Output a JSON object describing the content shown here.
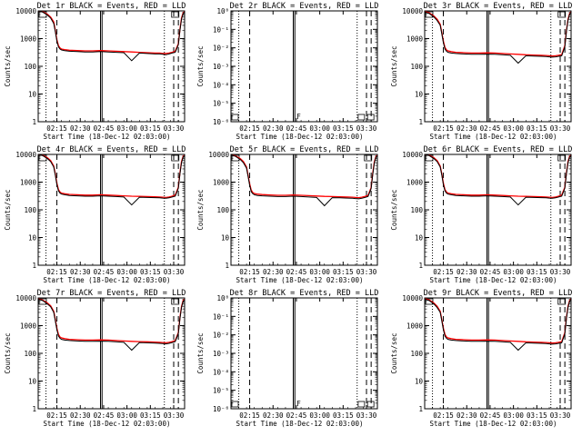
{
  "figure": {
    "time_ticks": [
      "02:15",
      "02:30",
      "02:45",
      "03:00",
      "03:15",
      "03:30"
    ],
    "xlabel": "Start Time (18-Dec-12 02:03:00)",
    "ylabel": "Counts/sec",
    "marker_box_label": "F"
  },
  "chart_data": [
    {
      "type": "line",
      "title": "Det 1r BLACK = Events, RED = LLD",
      "yscale": "log",
      "ylim": [
        1,
        10000
      ],
      "yticks": [
        "1",
        "10",
        "100",
        "1000",
        "10000"
      ],
      "has_data": true,
      "x_minutes": [
        0,
        3,
        6,
        8,
        10,
        11,
        12,
        13,
        14,
        15,
        17,
        20,
        25,
        30,
        35,
        40,
        45,
        50,
        55,
        60,
        65,
        70,
        75,
        78,
        80,
        82,
        84,
        86,
        88,
        90,
        91,
        92,
        93,
        94
      ],
      "series": [
        {
          "name": "Events",
          "color": "#000000",
          "values": [
            10000,
            9000,
            7000,
            5500,
            3500,
            1800,
            800,
            500,
            420,
            390,
            370,
            350,
            340,
            330,
            330,
            340,
            330,
            320,
            310,
            160,
            300,
            290,
            280,
            280,
            270,
            260,
            280,
            300,
            320,
            600,
            2000,
            5000,
            8000,
            9000
          ]
        },
        {
          "name": "LLD",
          "color": "#ff0000",
          "values": [
            10000,
            9300,
            7500,
            6000,
            4000,
            2000,
            900,
            560,
            460,
            420,
            400,
            380,
            370,
            360,
            360,
            370,
            360,
            350,
            340,
            330,
            320,
            310,
            300,
            300,
            290,
            290,
            300,
            320,
            350,
            650,
            2200,
            5500,
            8500,
            9500
          ]
        }
      ]
    },
    {
      "type": "line",
      "title": "Det 2r BLACK = Events, RED = LLD",
      "yscale": "log",
      "ylim": [
        1e-06,
        1
      ],
      "yticks": [
        "10⁰",
        "10⁻¹",
        "10⁻²",
        "10⁻³",
        "10⁻⁴",
        "10⁻⁵",
        "10⁻⁶"
      ],
      "has_data": false
    },
    {
      "type": "line",
      "title": "Det 3r BLACK = Events, RED = LLD",
      "yscale": "log",
      "ylim": [
        1,
        10000
      ],
      "yticks": [
        "1",
        "10",
        "100",
        "1000",
        "10000"
      ],
      "has_data": true,
      "x_minutes": [
        0,
        3,
        6,
        8,
        10,
        11,
        12,
        13,
        14,
        15,
        17,
        20,
        25,
        30,
        35,
        40,
        45,
        50,
        55,
        60,
        65,
        70,
        75,
        78,
        80,
        82,
        84,
        86,
        88,
        90,
        91,
        92,
        93,
        94
      ],
      "series": [
        {
          "name": "Events",
          "color": "#000000",
          "values": [
            9000,
            8000,
            6000,
            4500,
            3000,
            1500,
            700,
            420,
            350,
            320,
            300,
            290,
            280,
            270,
            270,
            275,
            270,
            260,
            250,
            130,
            240,
            235,
            230,
            225,
            220,
            215,
            220,
            230,
            240,
            500,
            1800,
            4500,
            7500,
            9000
          ]
        },
        {
          "name": "LLD",
          "color": "#ff0000",
          "values": [
            9500,
            8500,
            6500,
            5000,
            3300,
            1700,
            800,
            480,
            390,
            360,
            340,
            320,
            310,
            300,
            300,
            305,
            300,
            290,
            280,
            270,
            260,
            255,
            250,
            245,
            240,
            235,
            240,
            250,
            265,
            550,
            2000,
            5000,
            8000,
            9500
          ]
        }
      ]
    },
    {
      "type": "line",
      "title": "Det 4r BLACK = Events, RED = LLD",
      "yscale": "log",
      "ylim": [
        1,
        10000
      ],
      "yticks": [
        "1",
        "10",
        "100",
        "1000",
        "10000"
      ],
      "has_data": true,
      "x_minutes": [
        0,
        3,
        6,
        8,
        10,
        11,
        12,
        13,
        14,
        15,
        17,
        20,
        25,
        30,
        35,
        40,
        45,
        50,
        55,
        60,
        65,
        70,
        75,
        78,
        80,
        82,
        84,
        86,
        88,
        90,
        91,
        92,
        93,
        94
      ],
      "series": [
        {
          "name": "Events",
          "color": "#000000",
          "values": [
            10000,
            9000,
            7000,
            5500,
            3500,
            1800,
            800,
            480,
            400,
            370,
            350,
            330,
            320,
            310,
            310,
            320,
            310,
            300,
            290,
            150,
            285,
            280,
            275,
            270,
            265,
            260,
            270,
            290,
            310,
            600,
            2000,
            5000,
            8000,
            9000
          ]
        },
        {
          "name": "LLD",
          "color": "#ff0000",
          "values": [
            10000,
            9300,
            7500,
            6000,
            3800,
            2000,
            900,
            540,
            440,
            400,
            380,
            360,
            350,
            340,
            340,
            350,
            340,
            330,
            320,
            310,
            305,
            300,
            295,
            290,
            285,
            280,
            290,
            310,
            340,
            650,
            2200,
            5500,
            8500,
            9500
          ]
        }
      ]
    },
    {
      "type": "line",
      "title": "Det 5r BLACK = Events, RED = LLD",
      "yscale": "log",
      "ylim": [
        1,
        10000
      ],
      "yticks": [
        "1",
        "10",
        "100",
        "1000",
        "10000"
      ],
      "has_data": true,
      "x_minutes": [
        0,
        3,
        6,
        8,
        10,
        11,
        12,
        13,
        14,
        15,
        17,
        20,
        25,
        30,
        35,
        40,
        45,
        50,
        55,
        60,
        65,
        70,
        75,
        78,
        80,
        82,
        84,
        86,
        88,
        90,
        91,
        92,
        93,
        94
      ],
      "series": [
        {
          "name": "Events",
          "color": "#000000",
          "values": [
            9500,
            8500,
            6500,
            5000,
            3200,
            1600,
            750,
            450,
            380,
            350,
            330,
            320,
            310,
            300,
            300,
            310,
            300,
            290,
            280,
            140,
            275,
            270,
            265,
            260,
            255,
            250,
            260,
            280,
            300,
            580,
            1900,
            4800,
            7800,
            9000
          ]
        },
        {
          "name": "LLD",
          "color": "#ff0000",
          "values": [
            9800,
            8800,
            7000,
            5500,
            3500,
            1800,
            850,
            510,
            420,
            390,
            370,
            355,
            345,
            335,
            335,
            345,
            335,
            325,
            315,
            305,
            300,
            295,
            290,
            285,
            280,
            275,
            285,
            305,
            330,
            630,
            2100,
            5300,
            8300,
            9400
          ]
        }
      ]
    },
    {
      "type": "line",
      "title": "Det 6r BLACK = Events, RED = LLD",
      "yscale": "log",
      "ylim": [
        1,
        10000
      ],
      "yticks": [
        "1",
        "10",
        "100",
        "1000",
        "10000"
      ],
      "has_data": true,
      "x_minutes": [
        0,
        3,
        6,
        8,
        10,
        11,
        12,
        13,
        14,
        15,
        17,
        20,
        25,
        30,
        35,
        40,
        45,
        50,
        55,
        60,
        65,
        70,
        75,
        78,
        80,
        82,
        84,
        86,
        88,
        90,
        91,
        92,
        93,
        94
      ],
      "series": [
        {
          "name": "Events",
          "color": "#000000",
          "values": [
            10000,
            9000,
            7000,
            5500,
            3500,
            1800,
            800,
            480,
            400,
            370,
            350,
            330,
            320,
            310,
            310,
            320,
            310,
            300,
            290,
            150,
            285,
            280,
            275,
            270,
            265,
            260,
            270,
            290,
            310,
            600,
            2000,
            5000,
            8000,
            9000
          ]
        },
        {
          "name": "LLD",
          "color": "#ff0000",
          "values": [
            10000,
            9300,
            7500,
            6000,
            3800,
            2000,
            900,
            540,
            440,
            400,
            380,
            360,
            350,
            340,
            340,
            350,
            340,
            330,
            320,
            310,
            305,
            300,
            295,
            290,
            285,
            280,
            290,
            310,
            340,
            650,
            2200,
            5500,
            8500,
            9500
          ]
        }
      ]
    },
    {
      "type": "line",
      "title": "Det 7r BLACK = Events, RED = LLD",
      "yscale": "log",
      "ylim": [
        1,
        10000
      ],
      "yticks": [
        "1",
        "10",
        "100",
        "1000",
        "10000"
      ],
      "has_data": true,
      "x_minutes": [
        0,
        3,
        6,
        8,
        10,
        11,
        12,
        13,
        14,
        15,
        17,
        20,
        25,
        30,
        35,
        40,
        45,
        50,
        55,
        60,
        65,
        70,
        75,
        78,
        80,
        82,
        84,
        86,
        88,
        90,
        91,
        92,
        93,
        94
      ],
      "series": [
        {
          "name": "Events",
          "color": "#000000",
          "values": [
            9000,
            8000,
            6000,
            4800,
            3000,
            1500,
            700,
            420,
            350,
            320,
            300,
            290,
            280,
            270,
            270,
            275,
            270,
            260,
            250,
            130,
            245,
            240,
            235,
            230,
            225,
            220,
            230,
            245,
            265,
            520,
            1800,
            4500,
            7500,
            8500
          ]
        },
        {
          "name": "LLD",
          "color": "#ff0000",
          "values": [
            9300,
            8300,
            6500,
            5200,
            3300,
            1700,
            800,
            480,
            390,
            360,
            340,
            320,
            310,
            300,
            300,
            305,
            300,
            290,
            280,
            270,
            265,
            260,
            255,
            250,
            245,
            240,
            250,
            265,
            290,
            560,
            2000,
            4900,
            8000,
            9200
          ]
        }
      ]
    },
    {
      "type": "line",
      "title": "Det 8r BLACK = Events, RED = LLD",
      "yscale": "log",
      "ylim": [
        1e-06,
        1
      ],
      "yticks": [
        "10⁰",
        "10⁻¹",
        "10⁻²",
        "10⁻³",
        "10⁻⁴",
        "10⁻⁵",
        "10⁻⁶"
      ],
      "has_data": false
    },
    {
      "type": "line",
      "title": "Det 9r BLACK = Events, RED = LLD",
      "yscale": "log",
      "ylim": [
        1,
        10000
      ],
      "yticks": [
        "1",
        "10",
        "100",
        "1000",
        "10000"
      ],
      "has_data": true,
      "x_minutes": [
        0,
        3,
        6,
        8,
        10,
        11,
        12,
        13,
        14,
        15,
        17,
        20,
        25,
        30,
        35,
        40,
        45,
        50,
        55,
        60,
        65,
        70,
        75,
        78,
        80,
        82,
        84,
        86,
        88,
        90,
        91,
        92,
        93,
        94
      ],
      "series": [
        {
          "name": "Events",
          "color": "#000000",
          "values": [
            9000,
            8000,
            6000,
            4500,
            3000,
            1500,
            700,
            420,
            350,
            320,
            300,
            290,
            280,
            270,
            270,
            275,
            270,
            260,
            250,
            130,
            240,
            235,
            230,
            225,
            220,
            215,
            220,
            230,
            240,
            500,
            1800,
            4500,
            7500,
            9000
          ]
        },
        {
          "name": "LLD",
          "color": "#ff0000",
          "values": [
            9500,
            8500,
            6500,
            5000,
            3300,
            1700,
            800,
            480,
            390,
            360,
            340,
            320,
            310,
            300,
            300,
            305,
            300,
            290,
            280,
            270,
            260,
            255,
            250,
            245,
            240,
            235,
            240,
            250,
            265,
            550,
            2000,
            5000,
            8000,
            9500
          ]
        }
      ]
    }
  ]
}
